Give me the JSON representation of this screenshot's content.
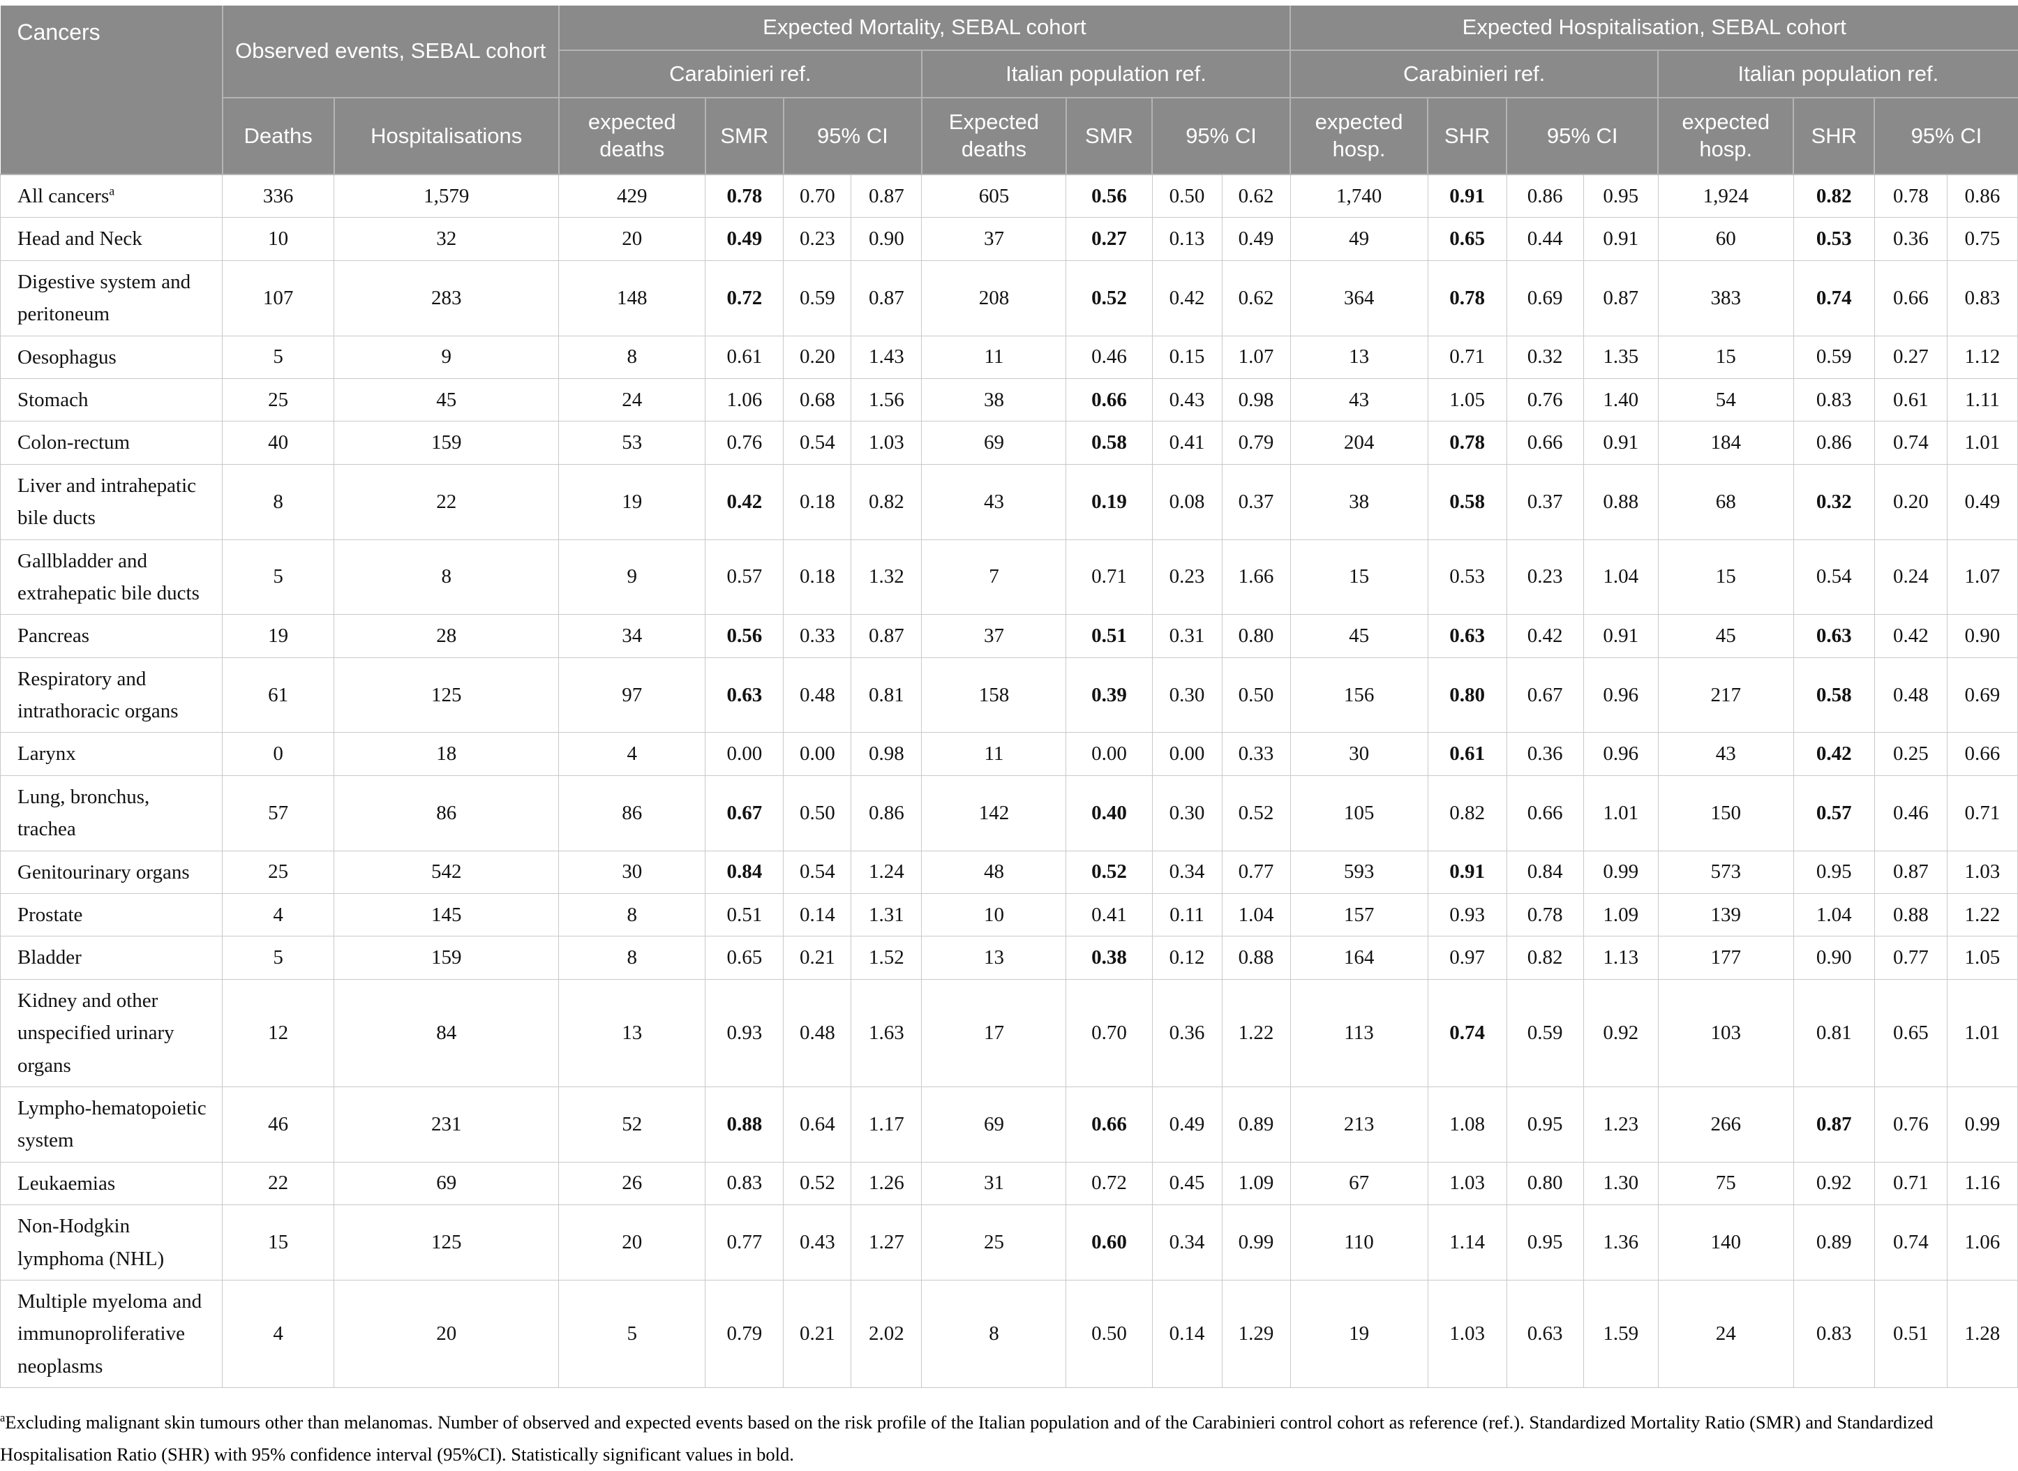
{
  "colors": {
    "header_bg": "#8a8a8a",
    "header_text": "#ffffff",
    "body_text": "#121212",
    "border_header": "#b4b4b4",
    "border_body": "#c9c9c9"
  },
  "table": {
    "header": {
      "cancers": "Cancers",
      "observed": "Observed events, SEBAL cohort",
      "mortality": "Expected Mortality, SEBAL cohort",
      "hospitalisation": "Expected Hospitalisation, SEBAL cohort",
      "carabinieri": "Carabinieri ref.",
      "italian": "Italian population ref.",
      "deaths": "Deaths",
      "hospitalisations": "Hospitalisations",
      "expected_deaths_carabinieri": "expected deaths",
      "expected_deaths_italian": "Expected deaths",
      "expected_hosp_carabinieri": "expected hosp.",
      "expected_hosp_italian": "expected hosp.",
      "smr": "SMR",
      "shr": "SHR",
      "ci": "95% CI"
    },
    "rows": [
      {
        "label": "All cancers",
        "sup": "a",
        "values": [
          "336",
          "1,579",
          "429",
          "0.78",
          "0.70",
          "0.87",
          "605",
          "0.56",
          "0.50",
          "0.62",
          "1,740",
          "0.91",
          "0.86",
          "0.95",
          "1,924",
          "0.82",
          "0.78",
          "0.86"
        ],
        "bold": [
          3,
          7,
          11,
          15
        ]
      },
      {
        "label": "Head and Neck",
        "values": [
          "10",
          "32",
          "20",
          "0.49",
          "0.23",
          "0.90",
          "37",
          "0.27",
          "0.13",
          "0.49",
          "49",
          "0.65",
          "0.44",
          "0.91",
          "60",
          "0.53",
          "0.36",
          "0.75"
        ],
        "bold": [
          3,
          7,
          11,
          15
        ]
      },
      {
        "label": "Digestive system and peritoneum",
        "values": [
          "107",
          "283",
          "148",
          "0.72",
          "0.59",
          "0.87",
          "208",
          "0.52",
          "0.42",
          "0.62",
          "364",
          "0.78",
          "0.69",
          "0.87",
          "383",
          "0.74",
          "0.66",
          "0.83"
        ],
        "bold": [
          3,
          7,
          11,
          15
        ]
      },
      {
        "label": "Oesophagus",
        "values": [
          "5",
          "9",
          "8",
          "0.61",
          "0.20",
          "1.43",
          "11",
          "0.46",
          "0.15",
          "1.07",
          "13",
          "0.71",
          "0.32",
          "1.35",
          "15",
          "0.59",
          "0.27",
          "1.12"
        ],
        "bold": []
      },
      {
        "label": "Stomach",
        "values": [
          "25",
          "45",
          "24",
          "1.06",
          "0.68",
          "1.56",
          "38",
          "0.66",
          "0.43",
          "0.98",
          "43",
          "1.05",
          "0.76",
          "1.40",
          "54",
          "0.83",
          "0.61",
          "1.11"
        ],
        "bold": [
          7
        ]
      },
      {
        "label": "Colon-rectum",
        "values": [
          "40",
          "159",
          "53",
          "0.76",
          "0.54",
          "1.03",
          "69",
          "0.58",
          "0.41",
          "0.79",
          "204",
          "0.78",
          "0.66",
          "0.91",
          "184",
          "0.86",
          "0.74",
          "1.01"
        ],
        "bold": [
          7,
          11
        ]
      },
      {
        "label": "Liver and intrahepatic bile ducts",
        "values": [
          "8",
          "22",
          "19",
          "0.42",
          "0.18",
          "0.82",
          "43",
          "0.19",
          "0.08",
          "0.37",
          "38",
          "0.58",
          "0.37",
          "0.88",
          "68",
          "0.32",
          "0.20",
          "0.49"
        ],
        "bold": [
          3,
          7,
          11,
          15
        ]
      },
      {
        "label": "Gallbladder and extrahepatic bile ducts",
        "values": [
          "5",
          "8",
          "9",
          "0.57",
          "0.18",
          "1.32",
          "7",
          "0.71",
          "0.23",
          "1.66",
          "15",
          "0.53",
          "0.23",
          "1.04",
          "15",
          "0.54",
          "0.24",
          "1.07"
        ],
        "bold": []
      },
      {
        "label": "Pancreas",
        "values": [
          "19",
          "28",
          "34",
          "0.56",
          "0.33",
          "0.87",
          "37",
          "0.51",
          "0.31",
          "0.80",
          "45",
          "0.63",
          "0.42",
          "0.91",
          "45",
          "0.63",
          "0.42",
          "0.90"
        ],
        "bold": [
          3,
          7,
          11,
          15
        ]
      },
      {
        "label": "Respiratory and intrathoracic organs",
        "values": [
          "61",
          "125",
          "97",
          "0.63",
          "0.48",
          "0.81",
          "158",
          "0.39",
          "0.30",
          "0.50",
          "156",
          "0.80",
          "0.67",
          "0.96",
          "217",
          "0.58",
          "0.48",
          "0.69"
        ],
        "bold": [
          3,
          7,
          11,
          15
        ]
      },
      {
        "label": "Larynx",
        "values": [
          "0",
          "18",
          "4",
          "0.00",
          "0.00",
          "0.98",
          "11",
          "0.00",
          "0.00",
          "0.33",
          "30",
          "0.61",
          "0.36",
          "0.96",
          "43",
          "0.42",
          "0.25",
          "0.66"
        ],
        "bold": [
          11,
          15
        ]
      },
      {
        "label": "Lung, bronchus, trachea",
        "values": [
          "57",
          "86",
          "86",
          "0.67",
          "0.50",
          "0.86",
          "142",
          "0.40",
          "0.30",
          "0.52",
          "105",
          "0.82",
          "0.66",
          "1.01",
          "150",
          "0.57",
          "0.46",
          "0.71"
        ],
        "bold": [
          3,
          7,
          15
        ]
      },
      {
        "label": "Genitourinary organs",
        "values": [
          "25",
          "542",
          "30",
          "0.84",
          "0.54",
          "1.24",
          "48",
          "0.52",
          "0.34",
          "0.77",
          "593",
          "0.91",
          "0.84",
          "0.99",
          "573",
          "0.95",
          "0.87",
          "1.03"
        ],
        "bold": [
          3,
          7,
          11
        ]
      },
      {
        "label": "Prostate",
        "values": [
          "4",
          "145",
          "8",
          "0.51",
          "0.14",
          "1.31",
          "10",
          "0.41",
          "0.11",
          "1.04",
          "157",
          "0.93",
          "0.78",
          "1.09",
          "139",
          "1.04",
          "0.88",
          "1.22"
        ],
        "bold": []
      },
      {
        "label": "Bladder",
        "values": [
          "5",
          "159",
          "8",
          "0.65",
          "0.21",
          "1.52",
          "13",
          "0.38",
          "0.12",
          "0.88",
          "164",
          "0.97",
          "0.82",
          "1.13",
          "177",
          "0.90",
          "0.77",
          "1.05"
        ],
        "bold": [
          7
        ]
      },
      {
        "label": "Kidney and other unspecified urinary organs",
        "values": [
          "12",
          "84",
          "13",
          "0.93",
          "0.48",
          "1.63",
          "17",
          "0.70",
          "0.36",
          "1.22",
          "113",
          "0.74",
          "0.59",
          "0.92",
          "103",
          "0.81",
          "0.65",
          "1.01"
        ],
        "bold": [
          11
        ]
      },
      {
        "label": "Lympho-hematopoietic system",
        "values": [
          "46",
          "231",
          "52",
          "0.88",
          "0.64",
          "1.17",
          "69",
          "0.66",
          "0.49",
          "0.89",
          "213",
          "1.08",
          "0.95",
          "1.23",
          "266",
          "0.87",
          "0.76",
          "0.99"
        ],
        "bold": [
          3,
          7,
          15
        ]
      },
      {
        "label": "Leukaemias",
        "values": [
          "22",
          "69",
          "26",
          "0.83",
          "0.52",
          "1.26",
          "31",
          "0.72",
          "0.45",
          "1.09",
          "67",
          "1.03",
          "0.80",
          "1.30",
          "75",
          "0.92",
          "0.71",
          "1.16"
        ],
        "bold": []
      },
      {
        "label": "Non-Hodgkin lymphoma (NHL)",
        "values": [
          "15",
          "125",
          "20",
          "0.77",
          "0.43",
          "1.27",
          "25",
          "0.60",
          "0.34",
          "0.99",
          "110",
          "1.14",
          "0.95",
          "1.36",
          "140",
          "0.89",
          "0.74",
          "1.06"
        ],
        "bold": [
          7
        ]
      },
      {
        "label": "Multiple myeloma and immunoproliferative neoplasms",
        "values": [
          "4",
          "20",
          "5",
          "0.79",
          "0.21",
          "2.02",
          "8",
          "0.50",
          "0.14",
          "1.29",
          "19",
          "1.03",
          "0.63",
          "1.59",
          "24",
          "0.83",
          "0.51",
          "1.28"
        ],
        "bold": []
      }
    ]
  },
  "footnote": {
    "sup": "a",
    "text": "Excluding malignant skin tumours other than melanomas. Number of observed and expected events based on the risk profile of the Italian population and of the Carabinieri control cohort as reference (ref.). Standardized Mortality Ratio (SMR) and Standardized Hospitalisation Ratio (SHR) with 95% confidence interval (95%CI). Statistically significant values in bold."
  }
}
